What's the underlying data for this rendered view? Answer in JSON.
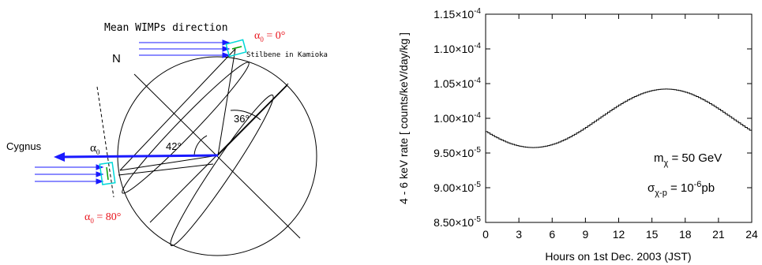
{
  "diagram": {
    "mean_wimps_label": "Mean WIMPs direction",
    "north_label": "N",
    "alpha0_top": {
      "symbol": "α",
      "sub": "0",
      "eq": " = 0°"
    },
    "stilbene_label": "Stilbene in Kamioka",
    "cygnus_label": "Cygnus",
    "alpha0_mid": {
      "symbol": "α",
      "sub": "0"
    },
    "angle_42": "42°",
    "angle_36": "36°",
    "alpha0_bottom": {
      "symbol": "α",
      "sub": "0",
      "eq": " = 80°"
    },
    "colors": {
      "red": "#e8141c",
      "blue": "#1a1aff",
      "cyan": "#00d8d8",
      "green": "#00a000"
    }
  },
  "chart_data": {
    "type": "line",
    "ylabel": "4 - 6 keV rate [ counts/keV/day/kg ]",
    "xlabel": "Hours on 1st Dec. 2003 (JST)",
    "xlim": [
      0,
      24
    ],
    "ylim": [
      8.5e-05,
      0.000115
    ],
    "x_ticks": [
      "0",
      "3",
      "6",
      "9",
      "12",
      "15",
      "18",
      "21",
      "24"
    ],
    "y_ticks": [
      {
        "mant": "1.15",
        "exp": "-4"
      },
      {
        "mant": "1.10",
        "exp": "-4"
      },
      {
        "mant": "1.05",
        "exp": "-4"
      },
      {
        "mant": "1.00",
        "exp": "-4"
      },
      {
        "mant": "9.50",
        "exp": "-5"
      },
      {
        "mant": "9.00",
        "exp": "-5"
      },
      {
        "mant": "8.50",
        "exp": "-5"
      }
    ],
    "times_symbol": "×10",
    "annotation_mass": {
      "m": "m",
      "sub": "χ",
      "rest": " = 50 GeV"
    },
    "annotation_sigma": {
      "s": "σ",
      "sub": "χ-p",
      "mid": " = 10",
      "sup": "-6",
      "unit": "pb"
    },
    "series": [
      {
        "step_hours": 0.2,
        "mean": 1.0,
        "amplitude": 0.108,
        "peak_hour": 16.2,
        "period_hours": 24
      }
    ]
  }
}
